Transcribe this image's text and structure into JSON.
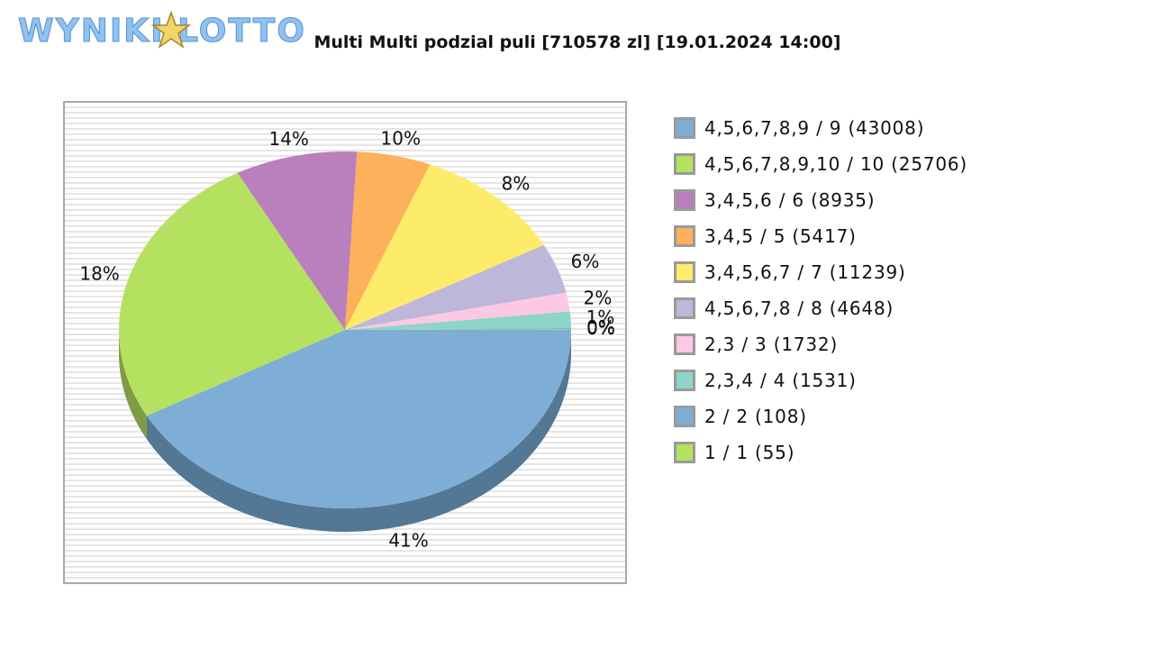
{
  "logo": {
    "text": "WYNIKI LOTTO"
  },
  "chart_data": {
    "type": "pie",
    "title": "Multi Multi podzial puli [710578 zl] [19.01.2024 14:00]",
    "slices": [
      {
        "label": "4,5,6,7,8,9 / 9 (43008)",
        "value": 43008,
        "pct_label": "41%",
        "color": "#7eaed5",
        "side_color": "#537896"
      },
      {
        "label": "4,5,6,7,8,9,10 / 10 (25706)",
        "value": 25706,
        "pct_label": "18%",
        "color": "#b5e161",
        "side_color": "#7e9c43"
      },
      {
        "label": "3,4,5,6 / 6 (8935)",
        "value": 8935,
        "pct_label": "14%",
        "color": "#ba7fbd",
        "side_color": "#82598a"
      },
      {
        "label": "3,4,5 / 5 (5417)",
        "value": 5417,
        "pct_label": "10%",
        "color": "#fdb15a",
        "side_color": "#b07c3e"
      },
      {
        "label": "3,4,5,6,7 / 7 (11239)",
        "value": 11239,
        "pct_label": "8%",
        "color": "#fdeb6a",
        "side_color": "#b0a44a"
      },
      {
        "label": "4,5,6,7,8 / 8 (4648)",
        "value": 4648,
        "pct_label": "6%",
        "color": "#bdb8da",
        "side_color": "#848097"
      },
      {
        "label": "2,3 / 3 (1732)",
        "value": 1732,
        "pct_label": "2%",
        "color": "#fdc8e3",
        "side_color": "#b08c9e"
      },
      {
        "label": "2,3,4 / 4 (1531)",
        "value": 1531,
        "pct_label": "1%",
        "color": "#8ed5c9",
        "side_color": "#63948c"
      },
      {
        "label": "2 / 2 (108)",
        "value": 108,
        "pct_label": "0%",
        "color": "#7eaed5",
        "side_color": "#537896"
      },
      {
        "label": "1 / 1 (55)",
        "value": 55,
        "pct_label": "0%",
        "color": "#b5e161",
        "side_color": "#7e9c43"
      }
    ]
  }
}
